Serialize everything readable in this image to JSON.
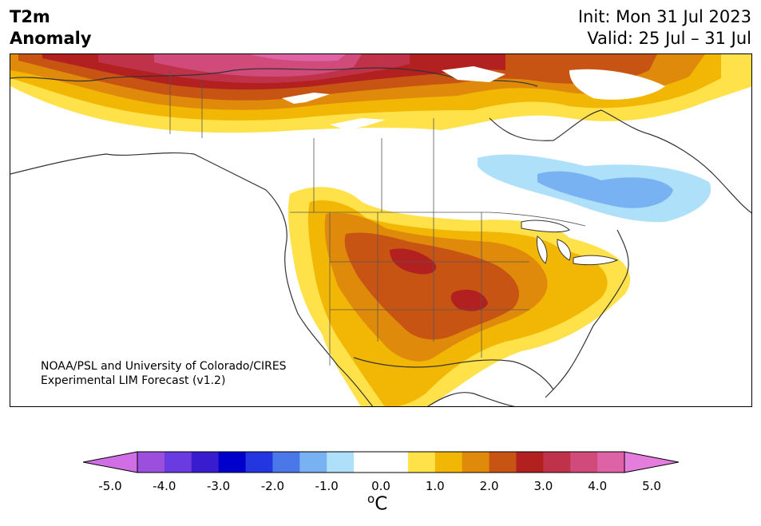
{
  "header": {
    "title_line1": "T2m",
    "title_line2": "Anomaly",
    "init": "Init: Mon 31 Jul 2023",
    "valid": "Valid: 25 Jul – 31 Jul"
  },
  "map": {
    "credit_line1": "NOAA/PSL and University of Colorado/CIRES",
    "credit_line2": "Experimental LIM Forecast (v1.2)",
    "region": "North America"
  },
  "colorbar": {
    "unit_base": "C",
    "unit_super": "o",
    "min": -5.0,
    "max": 5.0,
    "ticks": [
      "-5.0",
      "-4.0",
      "-3.0",
      "-2.0",
      "-1.0",
      "0.0",
      "1.0",
      "2.0",
      "3.0",
      "4.0",
      "5.0"
    ],
    "extend": "both",
    "colors": [
      "#d06ee6",
      "#9b4fdc",
      "#6a3be0",
      "#3a1ccf",
      "#0000cc",
      "#2436e0",
      "#4a78e8",
      "#78b2f2",
      "#aee0fa",
      "#ffffff",
      "#ffffff",
      "#ffe14a",
      "#f2b705",
      "#e08a0c",
      "#c85414",
      "#b2201f",
      "#c0324a",
      "#d04a7a",
      "#de62a6",
      "#e47ddc"
    ]
  }
}
